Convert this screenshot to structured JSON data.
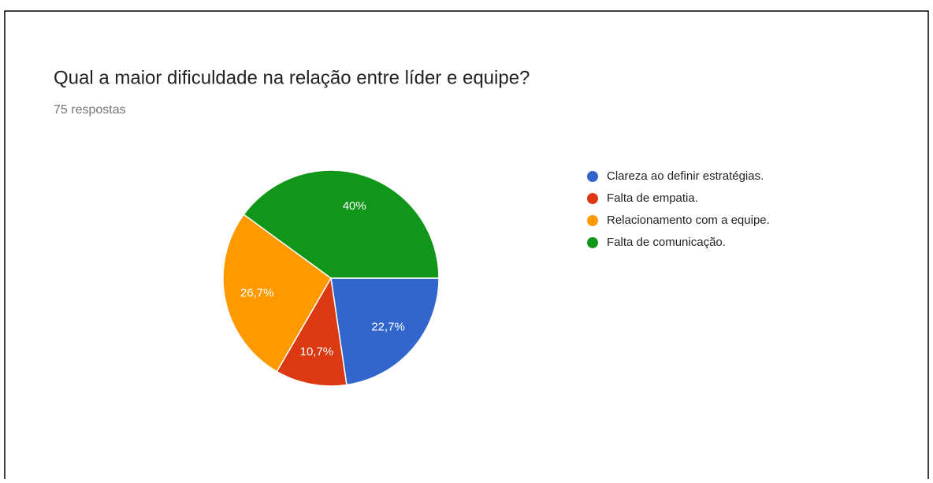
{
  "chart_data": {
    "type": "pie",
    "title": "Qual a maior dificuldade na relação entre líder e equipe?",
    "subtitle": "75 respostas",
    "categories": [
      "Clareza ao definir estratégias.",
      "Falta de empatia.",
      "Relacionamento com a equipe.",
      "Falta de comunicação."
    ],
    "values": [
      22.7,
      10.7,
      26.7,
      40
    ],
    "value_labels": [
      "22,7%",
      "10,7%",
      "26,7%",
      "40%"
    ],
    "colors": [
      "#3366cc",
      "#dc3912",
      "#ff9900",
      "#109618"
    ],
    "legend": "right"
  }
}
